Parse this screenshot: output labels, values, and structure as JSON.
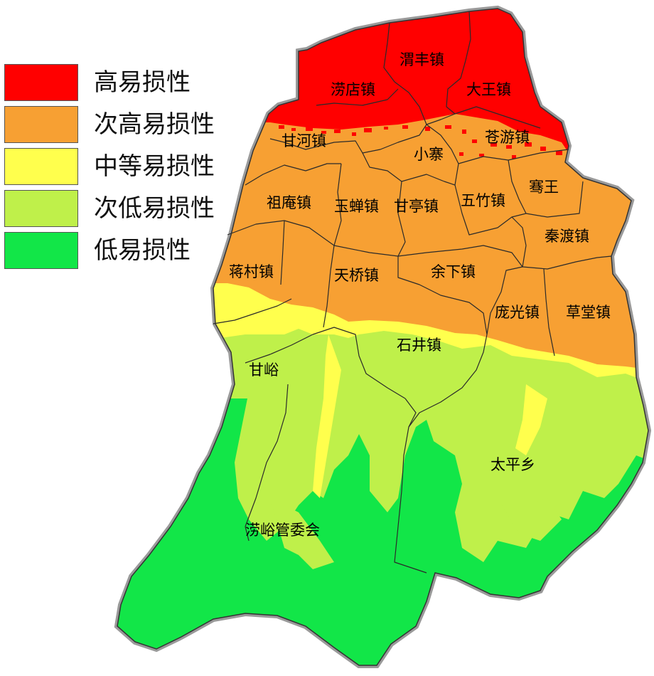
{
  "legend": {
    "items": [
      {
        "label": "高易损性",
        "color": "#ff0000"
      },
      {
        "label": "次高易损性",
        "color": "#f7a033"
      },
      {
        "label": "中等易损性",
        "color": "#ffff4d"
      },
      {
        "label": "次低易损性",
        "color": "#bff04a"
      },
      {
        "label": "低易损性",
        "color": "#12e648"
      }
    ]
  },
  "towns": {
    "weifeng": "渭丰镇",
    "laodian": "涝店镇",
    "dawang": "大王镇",
    "ganhe": "甘河镇",
    "xiaozhai": "小寨",
    "cangyou": "苍游镇",
    "jianwang": "骞王",
    "zu_an": "祖庵镇",
    "yuchan": "玉蝉镇",
    "ganting": "甘亭镇",
    "wuzhu": "五竹镇",
    "qindu": "秦渡镇",
    "jiangcun": "蒋村镇",
    "tianqiao": "天桥镇",
    "yuxia": "余下镇",
    "pangguang": "庞光镇",
    "caotang": "草堂镇",
    "shijing": "石井镇",
    "ganyu": "甘峪",
    "taiping": "太平乡",
    "laoyu": "涝峪管委会"
  }
}
